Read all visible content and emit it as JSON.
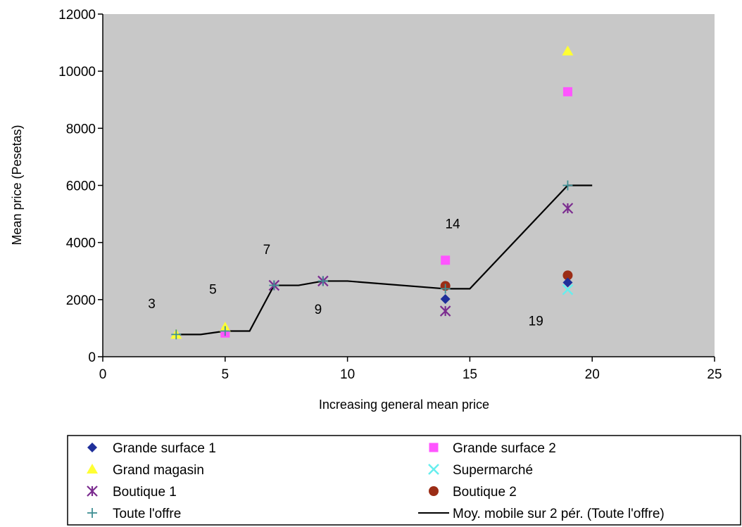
{
  "chart_data": {
    "type": "scatter",
    "xlabel": "Increasing general mean price",
    "ylabel": "Mean price (Pesetas)",
    "xlim": [
      0,
      25
    ],
    "ylim": [
      0,
      12000
    ],
    "x_ticks": [
      "0",
      "5",
      "10",
      "15",
      "20",
      "25"
    ],
    "y_ticks": [
      "0",
      "2000",
      "4000",
      "6000",
      "8000",
      "10000",
      "12000"
    ],
    "plot_background": "#c8c8c8",
    "grid": false,
    "legend_position": "bottom",
    "annotations": [
      {
        "text": "3",
        "x": 2,
        "y": 1700
      },
      {
        "text": "5",
        "x": 4.5,
        "y": 2200
      },
      {
        "text": "7",
        "x": 6.7,
        "y": 3600
      },
      {
        "text": "9",
        "x": 8.8,
        "y": 1500
      },
      {
        "text": "14",
        "x": 14.3,
        "y": 4500
      },
      {
        "text": "19",
        "x": 17.7,
        "y": 1100
      }
    ],
    "series": [
      {
        "name": "Grande surface 1",
        "marker": "diamond",
        "color": "#1f2f9a",
        "points": [
          [
            14,
            2020
          ],
          [
            19,
            2600
          ]
        ]
      },
      {
        "name": "Grand magasin",
        "marker": "triangle",
        "color": "#ffff33",
        "points": [
          [
            3,
            780
          ],
          [
            5,
            1030
          ],
          [
            19,
            10700
          ]
        ]
      },
      {
        "name": "Boutique 1",
        "marker": "asterisk",
        "color": "#7b2c8f",
        "points": [
          [
            7,
            2500
          ],
          [
            9,
            2650
          ],
          [
            14,
            1600
          ],
          [
            19,
            5200
          ]
        ]
      },
      {
        "name": "Toute l'offre",
        "marker": "plus",
        "color": "#3f8f94",
        "points": [
          [
            3,
            780
          ],
          [
            5,
            900
          ],
          [
            7,
            2500
          ],
          [
            9,
            2650
          ],
          [
            14,
            2380
          ],
          [
            19,
            6000
          ]
        ]
      },
      {
        "name": "Grande surface 2",
        "marker": "square",
        "color": "#ff55ff",
        "points": [
          [
            5,
            830
          ],
          [
            14,
            3380
          ],
          [
            19,
            9280
          ]
        ]
      },
      {
        "name": "Supermarché",
        "marker": "x",
        "color": "#66eeee",
        "points": [
          [
            19,
            2350
          ]
        ]
      },
      {
        "name": "Boutique 2",
        "marker": "circle",
        "color": "#9b2d16",
        "points": [
          [
            14,
            2480
          ],
          [
            19,
            2850
          ]
        ]
      },
      {
        "name": "Moy. mobile sur 2 pér. (Toute l'offre)",
        "marker": "line",
        "color": "#000000",
        "points": [
          [
            3,
            780
          ],
          [
            4,
            780
          ],
          [
            5,
            900
          ],
          [
            6,
            900
          ],
          [
            7,
            2500
          ],
          [
            8,
            2500
          ],
          [
            9,
            2650
          ],
          [
            10,
            2650
          ],
          [
            14,
            2380
          ],
          [
            15,
            2380
          ],
          [
            19,
            6000
          ],
          [
            20,
            6000
          ]
        ]
      }
    ]
  },
  "legend": {
    "left": [
      {
        "label": "Grande surface 1",
        "marker": "diamond",
        "color": "#1f2f9a"
      },
      {
        "label": "Grand magasin",
        "marker": "triangle",
        "color": "#ffff33"
      },
      {
        "label": "Boutique 1",
        "marker": "asterisk",
        "color": "#7b2c8f"
      },
      {
        "label": "Toute l'offre",
        "marker": "plus",
        "color": "#3f8f94"
      }
    ],
    "right": [
      {
        "label": "Grande surface 2",
        "marker": "square",
        "color": "#ff55ff"
      },
      {
        "label": "Supermarché",
        "marker": "x",
        "color": "#66eeee"
      },
      {
        "label": "Boutique 2",
        "marker": "circle",
        "color": "#9b2d16"
      },
      {
        "label": "Moy. mobile sur 2 pér. (Toute l'offre)",
        "marker": "line",
        "color": "#000000"
      }
    ]
  }
}
